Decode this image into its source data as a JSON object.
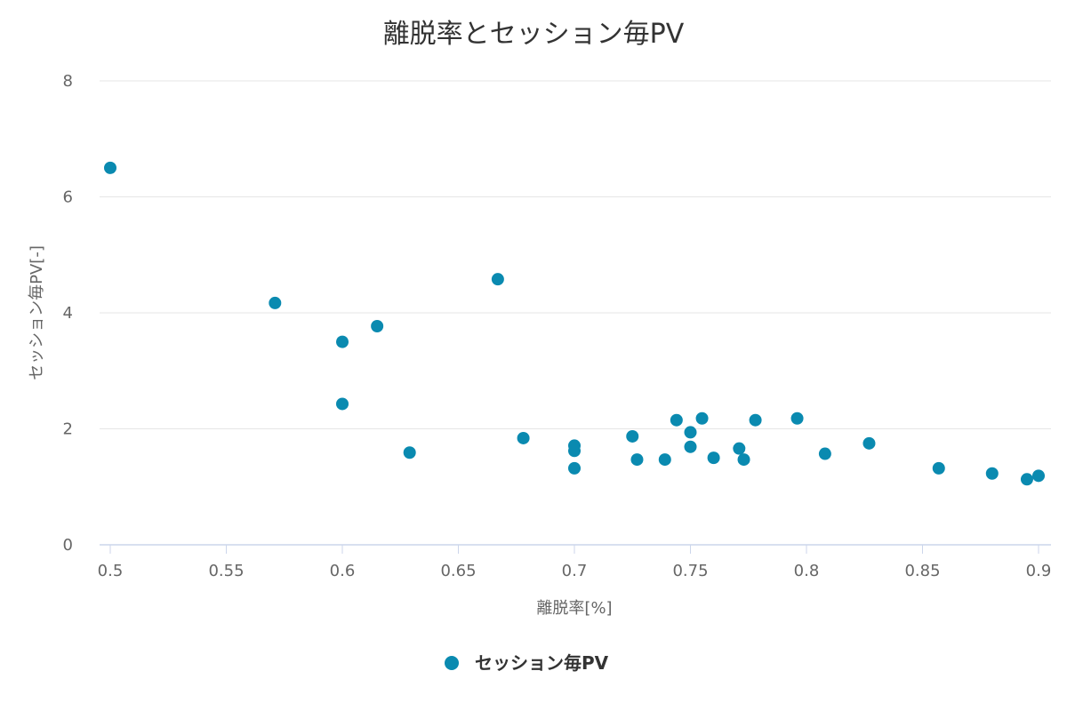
{
  "chart_data": {
    "type": "scatter",
    "title": "離脱率とセッション毎PV",
    "xlabel": "離脱率[%]",
    "ylabel": "セッション毎PV[-]",
    "xlim": [
      0.5,
      0.9
    ],
    "ylim": [
      0,
      8
    ],
    "x_ticks": [
      "0.5",
      "0.55",
      "0.6",
      "0.65",
      "0.7",
      "0.75",
      "0.8",
      "0.85",
      "0.9"
    ],
    "y_ticks": [
      "0",
      "2",
      "4",
      "6",
      "8"
    ],
    "grid": true,
    "legend": "bottom",
    "series": [
      {
        "name": "セッション毎PV",
        "color": "#0a8ab0",
        "points": [
          [
            0.5,
            6.5
          ],
          [
            0.571,
            4.17
          ],
          [
            0.6,
            3.5
          ],
          [
            0.6,
            2.43
          ],
          [
            0.615,
            3.77
          ],
          [
            0.629,
            1.59
          ],
          [
            0.667,
            4.58
          ],
          [
            0.678,
            1.84
          ],
          [
            0.7,
            1.71
          ],
          [
            0.7,
            1.62
          ],
          [
            0.7,
            1.32
          ],
          [
            0.725,
            1.87
          ],
          [
            0.727,
            1.47
          ],
          [
            0.739,
            1.47
          ],
          [
            0.744,
            2.15
          ],
          [
            0.75,
            1.94
          ],
          [
            0.75,
            1.69
          ],
          [
            0.755,
            2.18
          ],
          [
            0.76,
            1.5
          ],
          [
            0.771,
            1.66
          ],
          [
            0.773,
            1.47
          ],
          [
            0.778,
            2.15
          ],
          [
            0.796,
            2.18
          ],
          [
            0.808,
            1.57
          ],
          [
            0.827,
            1.75
          ],
          [
            0.857,
            1.32
          ],
          [
            0.88,
            1.23
          ],
          [
            0.895,
            1.13
          ],
          [
            0.9,
            1.19
          ]
        ]
      }
    ]
  }
}
